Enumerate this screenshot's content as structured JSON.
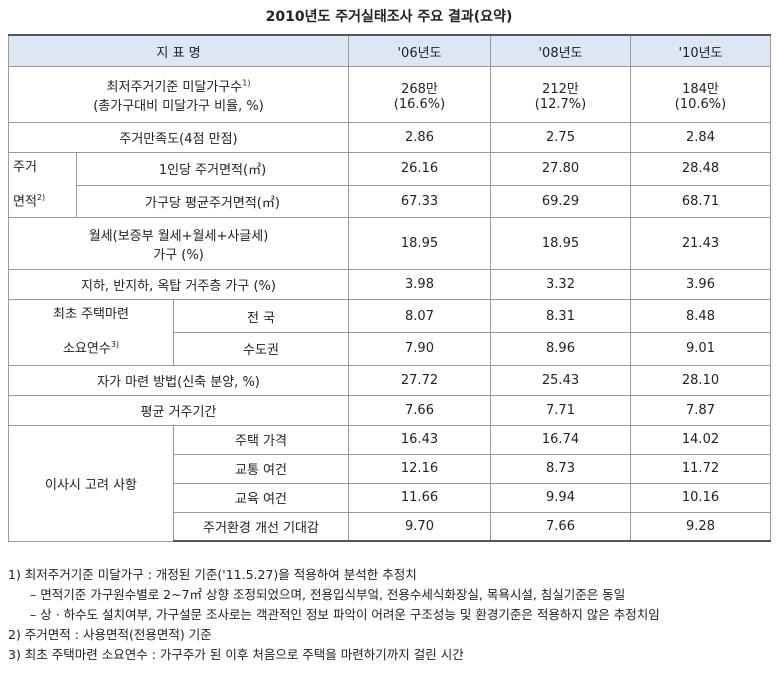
{
  "title": "2010년도 주거실태조사 주요 결과(요약)",
  "header": {
    "indicator": "지 표 명",
    "y06": "'06년도",
    "y08": "'08년도",
    "y10": "'10년도"
  },
  "rows": {
    "below_min": {
      "label1": "최저주거기준 미달가구수",
      "sup": "1)",
      "label2": "(총가구대비 미달가구 비율, %)",
      "v06": "268만",
      "v06b": "(16.6%)",
      "v08": "212만",
      "v08b": "(12.7%)",
      "v10": "184만",
      "v10b": "(10.6%)"
    },
    "satisfaction": {
      "label": "주거만족도(4점 만점)",
      "v06": "2.86",
      "v08": "2.75",
      "v10": "2.84"
    },
    "area_group": {
      "label1": "주거",
      "label2": "면적",
      "sup": "2)"
    },
    "area_per_person": {
      "label": "1인당 주거면적(㎡)",
      "v06": "26.16",
      "v08": "27.80",
      "v10": "28.48"
    },
    "area_per_household": {
      "label": "가구당 평균주거면적(㎡)",
      "v06": "67.33",
      "v08": "69.29",
      "v10": "68.71"
    },
    "rent": {
      "label1": "월세(보증부 월세+월세+사글세)",
      "label2": "가구 (%)",
      "v06": "18.95",
      "v08": "18.95",
      "v10": "21.43"
    },
    "basement": {
      "label": "지하, 반지하, 옥탑 거주층 가구 (%)",
      "v06": "3.98",
      "v08": "3.32",
      "v10": "3.96"
    },
    "first_home_group": {
      "label1": "최초 주택마련",
      "label2": "소요연수",
      "sup": "3)"
    },
    "first_home_nation": {
      "label": "전  국",
      "v06": "8.07",
      "v08": "8.31",
      "v10": "8.48"
    },
    "first_home_capital": {
      "label": "수도권",
      "v06": "7.90",
      "v08": "8.96",
      "v10": "9.01"
    },
    "own_home_method": {
      "label": "자가 마련 방법(신축 분양, %)",
      "v06": "27.72",
      "v08": "25.43",
      "v10": "28.10"
    },
    "avg_residence": {
      "label": "평균 거주기간",
      "v06": "7.66",
      "v08": "7.71",
      "v10": "7.87"
    },
    "moving_group": {
      "label": "이사시 고려 사항"
    },
    "moving_price": {
      "label": "주택 가격",
      "v06": "16.43",
      "v08": "16.74",
      "v10": "14.02"
    },
    "moving_traffic": {
      "label": "교통 여건",
      "v06": "12.16",
      "v08": "8.73",
      "v10": "11.72"
    },
    "moving_education": {
      "label": "교육 여건",
      "v06": "11.66",
      "v08": "9.94",
      "v10": "10.16"
    },
    "moving_environment": {
      "label": "주거환경 개선 기대감",
      "v06": "9.70",
      "v08": "7.66",
      "v10": "9.28"
    }
  },
  "footnotes": {
    "n1": "1) 최저주거기준 미달가구 : 개정된 기준('11.5.27)을 적용하여 분석한 추정치",
    "n1a": "– 면적기준 가구원수별로 2~7㎡ 상향 조정되었으며, 전용입식부엌, 전용수세식화장실, 목욕시설, 침실기준은 동일",
    "n1b": "– 상 · 하수도 설치여부, 가구설문 조사로는 객관적인 정보 파악이 어려운 구조성능 및 환경기준은 적용하지 않은 추정치임",
    "n2": "2) 주거면적 : 사용면적(전용면적) 기준",
    "n3": "3) 최초 주택마련 소요연수 : 가구주가 된 이후 처음으로 주택을 마련하기까지 걸린 시간"
  }
}
